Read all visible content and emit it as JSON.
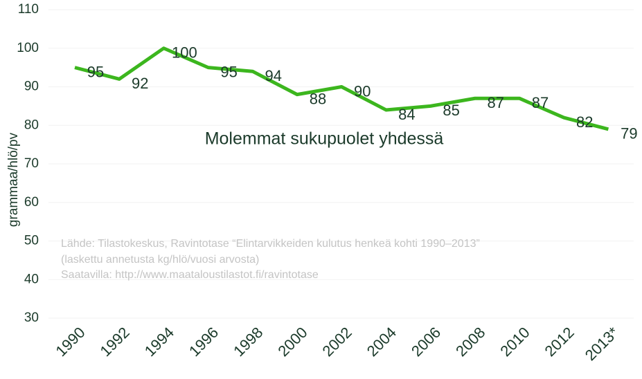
{
  "chart_data": {
    "type": "line",
    "y_label": "grammaa/hlö/pv",
    "annotation": "Molemmat sukupuolet yhdessä",
    "source_lines": [
      "Lähde: Tilastokeskus, Ravintotase “Elintarvikkeiden kulutus henkeä kohti 1990–2013”",
      "(laskettu annetusta kg/hlö/vuosi arvosta)",
      "Saatavilla: http://www.maataloustilastot.fi/ravintotase"
    ],
    "categories": [
      "1990",
      "1992",
      "1994",
      "1996",
      "1998",
      "2000",
      "2002",
      "2004",
      "2006",
      "2008",
      "2010",
      "2012",
      "2013*"
    ],
    "series": [
      {
        "name": "Molemmat sukupuolet yhdessä",
        "color": "#3cb61e",
        "values": [
          95,
          92,
          100,
          95,
          94,
          88,
          90,
          84,
          85,
          87,
          87,
          82,
          79
        ]
      }
    ],
    "ylim": [
      30,
      110
    ],
    "yticks": [
      30,
      40,
      50,
      60,
      70,
      80,
      90,
      100,
      110
    ],
    "grid": true
  }
}
